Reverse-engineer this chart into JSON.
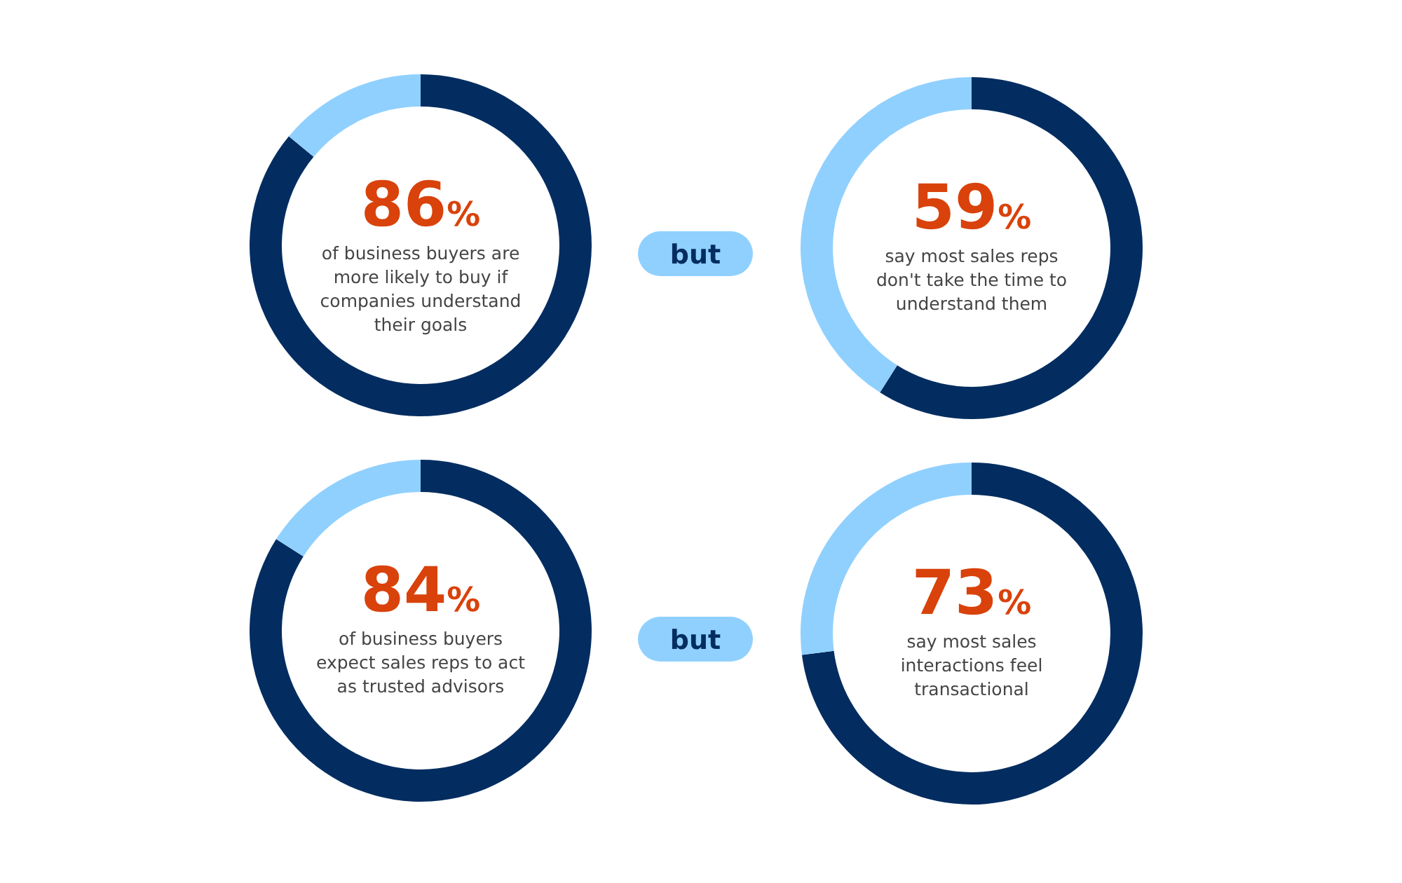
{
  "chart_data": [
    {
      "type": "donut",
      "categories": [
        null,
        null
      ],
      "values": [
        86,
        14
      ],
      "colors": [
        "#032d60",
        "#90d0fe"
      ],
      "value_labels": [
        "86%",
        null
      ],
      "annotations": [
        "of business buyers are more likely to buy if companies understand their goals",
        "but"
      ]
    },
    {
      "type": "donut",
      "categories": [
        null,
        null
      ],
      "values": [
        59,
        41
      ],
      "colors": [
        "#032d60",
        "#90d0fe"
      ],
      "value_labels": [
        "59%",
        null
      ],
      "annotations": [
        "say most sales reps don't take the time to understand them"
      ]
    },
    {
      "type": "donut",
      "categories": [
        null,
        null
      ],
      "values": [
        84,
        16
      ],
      "colors": [
        "#032d60",
        "#90d0fe"
      ],
      "value_labels": [
        "84%",
        null
      ],
      "annotations": [
        "of business buyers expect sales reps to act as trusted advisors",
        "but"
      ]
    },
    {
      "type": "donut",
      "categories": [
        null,
        null
      ],
      "values": [
        73,
        27
      ],
      "colors": [
        "#032d60",
        "#90d0fe"
      ],
      "value_labels": [
        "73%",
        null
      ],
      "annotations": [
        "say most sales interactions feel transactional"
      ]
    }
  ]
}
